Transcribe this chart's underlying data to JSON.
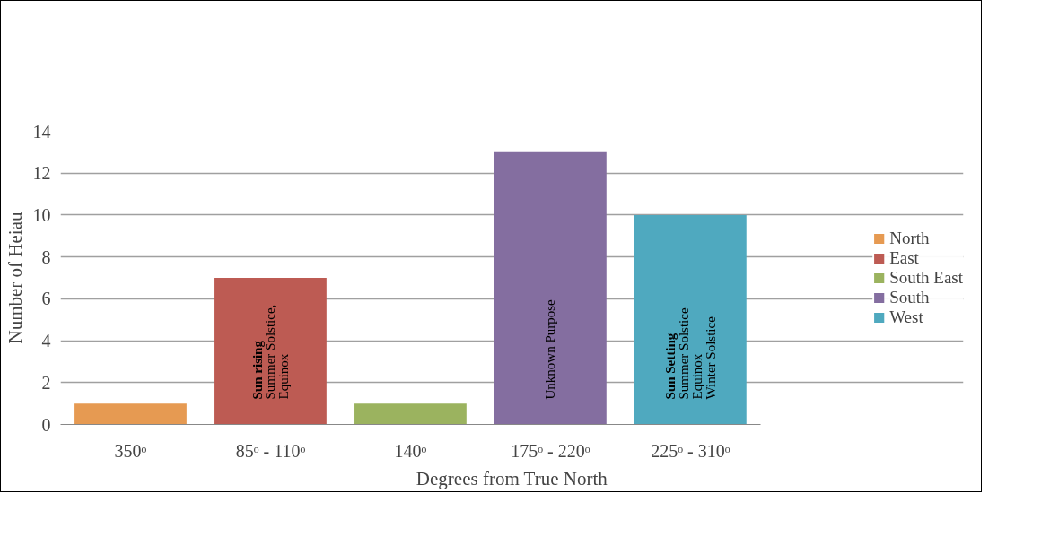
{
  "chart_data": {
    "type": "bar",
    "xlabel": "Degrees from True North",
    "ylabel": "Number of Heiau",
    "categories": [
      "350ᵒ",
      "85ᵒ - 110ᵒ",
      "140ᵒ",
      "175ᵒ - 220ᵒ",
      "225ᵒ - 310ᵒ"
    ],
    "series": [
      {
        "name": "North",
        "color": "#e69a52",
        "values": [
          1,
          null,
          null,
          null,
          null
        ]
      },
      {
        "name": "East",
        "color": "#bd5b53",
        "values": [
          null,
          7,
          null,
          null,
          null
        ]
      },
      {
        "name": "South East",
        "color": "#9bb35f",
        "values": [
          null,
          null,
          1,
          null,
          null
        ]
      },
      {
        "name": "South",
        "color": "#846ea0",
        "values": [
          null,
          null,
          null,
          13,
          null
        ]
      },
      {
        "name": "West",
        "color": "#4fa9bf",
        "values": [
          null,
          null,
          null,
          null,
          10
        ]
      }
    ],
    "ylim": [
      0,
      14
    ],
    "yticks": [
      0,
      2,
      4,
      6,
      8,
      10,
      12,
      14
    ],
    "grid": "y",
    "legend": "right",
    "annotations": [
      "Sun rising\nSummer Solstice,\nEquinox",
      "Unknown Purpose",
      "Sun Setting\nSummer Solstice\nEquinox\nWinter Solstice"
    ]
  }
}
